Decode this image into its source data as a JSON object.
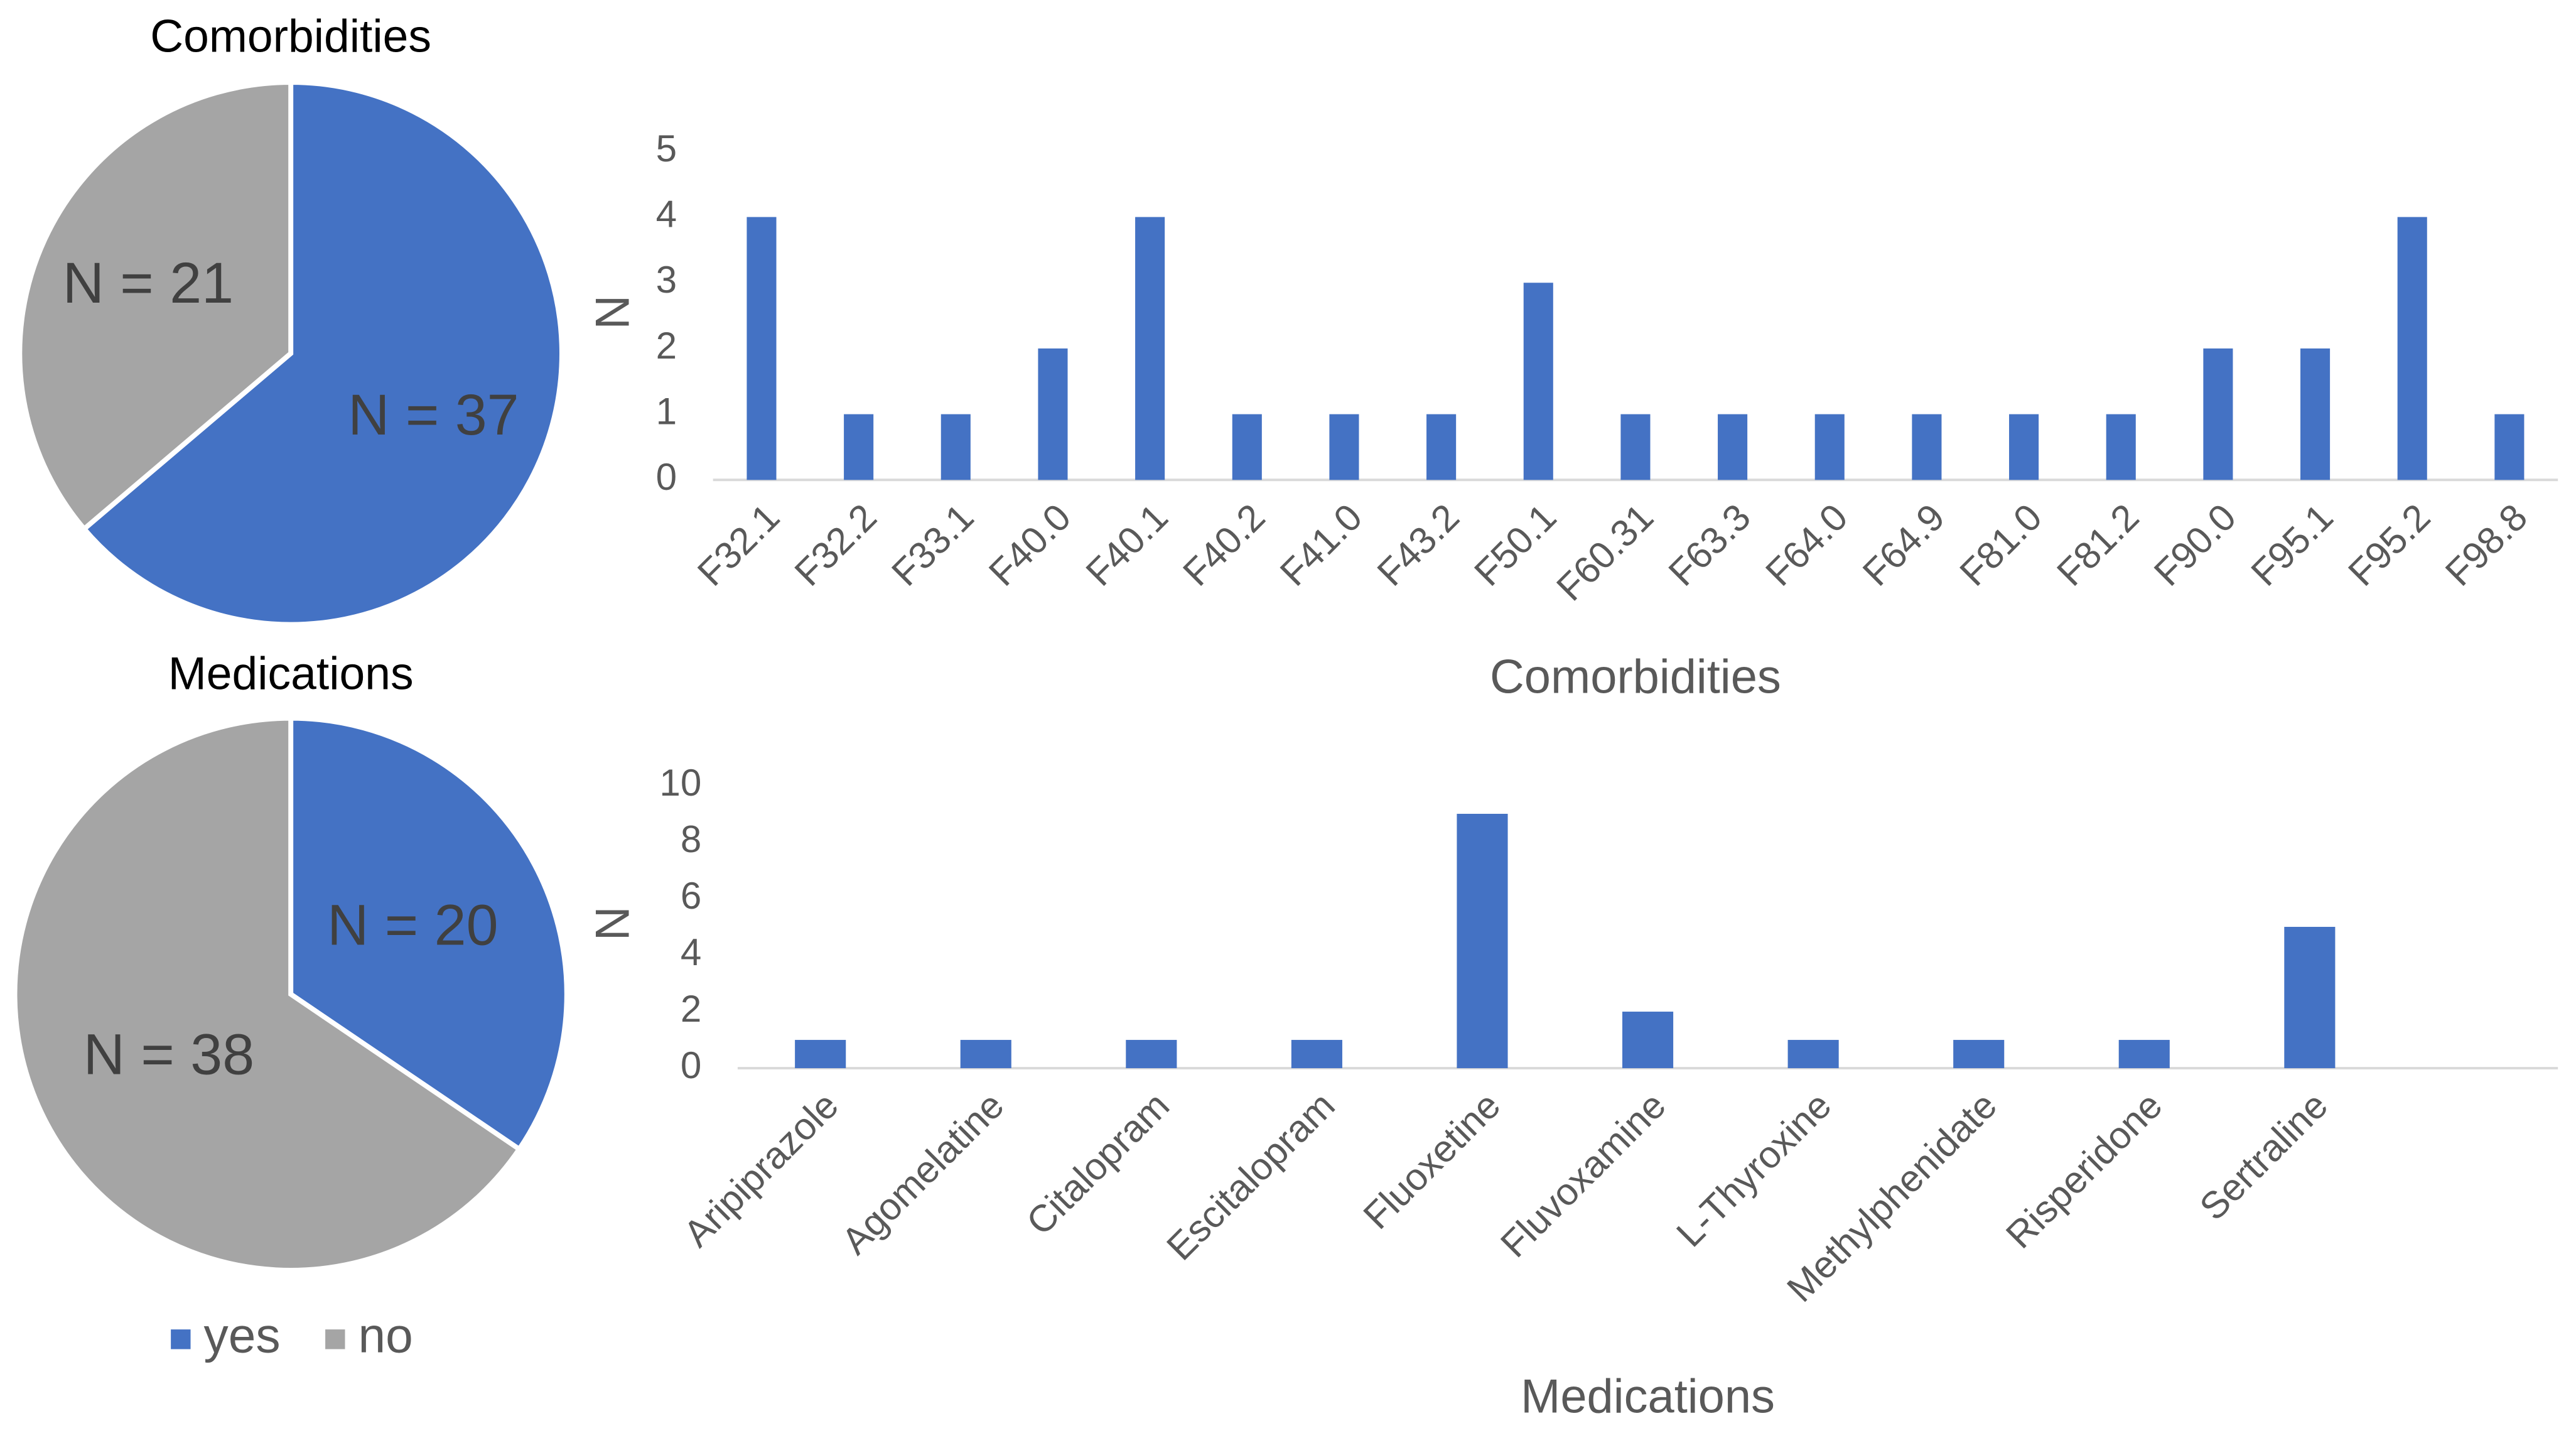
{
  "chart_data": [
    {
      "type": "pie",
      "title": "Comorbidities",
      "values": [
        37,
        21
      ],
      "value_labels": [
        "N = 37",
        "N = 21"
      ],
      "colors": [
        "#4472c4",
        "#a5a5a5"
      ]
    },
    {
      "type": "bar",
      "xlabel": "Comorbidities",
      "ylabel": "N",
      "categories": [
        "F32.1",
        "F32.2",
        "F33.1",
        "F40.0",
        "F40.1",
        "F40.2",
        "F41.0",
        "F43.2",
        "F50.1",
        "F60.31",
        "F63.3",
        "F64.0",
        "F64.9",
        "F81.0",
        "F81.2",
        "F90.0",
        "F95.1",
        "F95.2",
        "F98.8"
      ],
      "values": [
        4,
        1,
        1,
        2,
        4,
        1,
        1,
        1,
        3,
        1,
        1,
        1,
        1,
        1,
        1,
        2,
        2,
        4,
        1
      ],
      "color": "#4472c4",
      "ylim": [
        0,
        5
      ],
      "yticks": [
        0,
        1,
        2,
        3,
        4,
        5
      ],
      "grid": false
    },
    {
      "type": "pie",
      "title": "Medications",
      "categories": [
        "yes",
        "no"
      ],
      "values": [
        20,
        38
      ],
      "value_labels": [
        "N = 20",
        "N = 38"
      ],
      "colors": [
        "#4472c4",
        "#a5a5a5"
      ],
      "legend": "bottom"
    },
    {
      "type": "bar",
      "xlabel": "Medications",
      "ylabel": "N",
      "categories": [
        "Aripiprazole",
        "Agomelatine",
        "Citalopram",
        "Escitalopram",
        "Fluoxetine",
        "Fluvoxamine",
        "L-Thyroxine",
        "Methylphenidate",
        "Risperidone",
        "Sertraline",
        null
      ],
      "values": [
        1,
        1,
        1,
        1,
        9,
        2,
        1,
        1,
        1,
        5,
        null
      ],
      "color": "#4472c4",
      "ylim": [
        0,
        10
      ],
      "yticks": [
        0,
        2,
        4,
        6,
        8,
        10
      ],
      "grid": false
    }
  ]
}
